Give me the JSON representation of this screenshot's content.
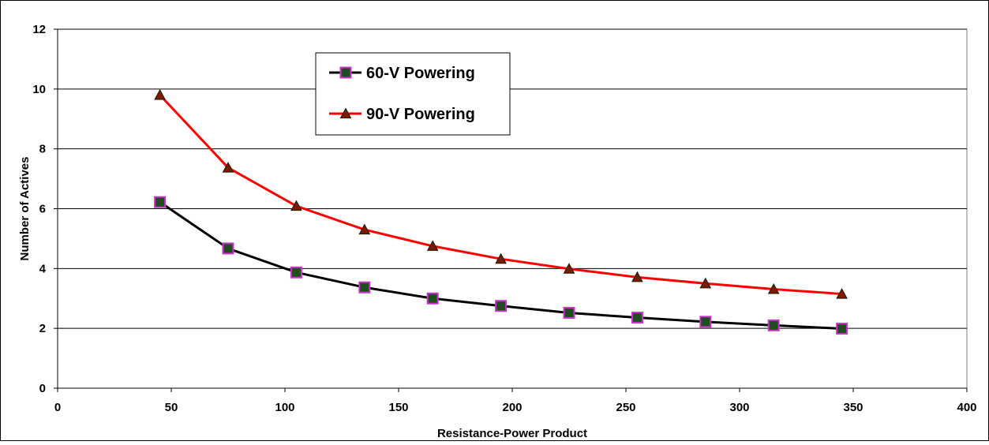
{
  "chart_data": {
    "type": "line",
    "title": "",
    "xlabel": "Resistance-Power Product",
    "ylabel": "Number of Actives",
    "xlim": [
      0,
      400
    ],
    "ylim": [
      0,
      12
    ],
    "x_ticks": [
      0,
      50,
      100,
      150,
      200,
      250,
      300,
      350,
      400
    ],
    "y_ticks": [
      0,
      2,
      4,
      6,
      8,
      10,
      12
    ],
    "grid": "horizontal",
    "legend_position": "top-left",
    "x": [
      45,
      75,
      105,
      135,
      165,
      195,
      225,
      255,
      285,
      315,
      345
    ],
    "series": [
      {
        "name": "60-V Powering",
        "line_color": "#000000",
        "marker": "square",
        "marker_fill": "#1f4d1f",
        "marker_edge": "#cc33cc",
        "values": [
          6.22,
          4.67,
          3.87,
          3.37,
          3.0,
          2.75,
          2.52,
          2.36,
          2.22,
          2.1,
          1.99
        ]
      },
      {
        "name": "90-V Powering",
        "line_color": "#ff0000",
        "marker": "triangle",
        "marker_fill": "#7a1a00",
        "marker_edge": "#1a1a00",
        "values": [
          9.8,
          7.37,
          6.09,
          5.3,
          4.75,
          4.32,
          3.99,
          3.71,
          3.5,
          3.31,
          3.15
        ]
      }
    ]
  }
}
